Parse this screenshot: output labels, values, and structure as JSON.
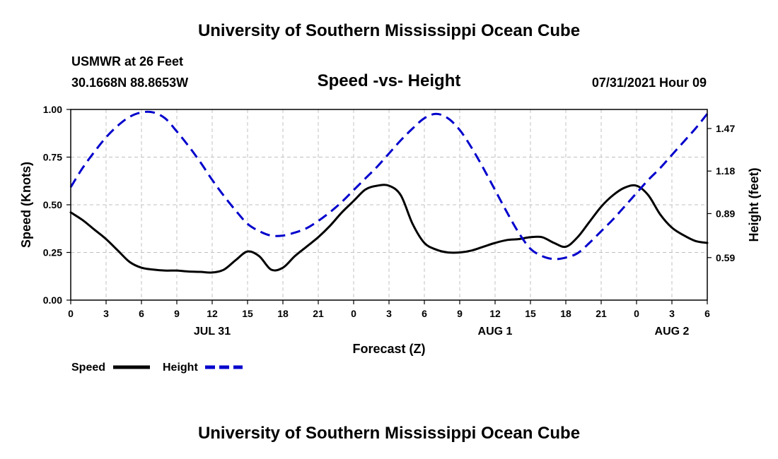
{
  "header": {
    "title": "University of Southern Mississippi Ocean Cube",
    "station": "USMWR at 26 Feet",
    "coordinates": "30.1668N  88.8653W",
    "chart_title": "Speed -vs- Height",
    "datetime": "07/31/2021 Hour 09"
  },
  "footer": {
    "title": "University of Southern Mississippi Ocean Cube"
  },
  "legend": {
    "speed_label": "Speed",
    "height_label": "Height"
  },
  "colors": {
    "speed": "#000000",
    "height": "#0000cc",
    "grid": "#c0c0c0"
  },
  "chart_data": {
    "type": "line",
    "title": "Speed -vs- Height",
    "xlabel": "Forecast (Z)",
    "ylabel": "Speed (Knots)",
    "y2label": "Height (feet)",
    "grid": true,
    "legend_position": "bottom-left",
    "x_range_hours": [
      0,
      54
    ],
    "x_tick_hours": [
      0,
      3,
      6,
      9,
      12,
      15,
      18,
      21,
      24,
      27,
      30,
      33,
      36,
      39,
      42,
      45,
      48,
      51,
      54
    ],
    "x_tick_labels": [
      "0",
      "3",
      "6",
      "9",
      "12",
      "15",
      "18",
      "21",
      "0",
      "3",
      "6",
      "9",
      "12",
      "15",
      "18",
      "21",
      "0",
      "3",
      "6"
    ],
    "date_labels": [
      {
        "hour": 12,
        "label": "JUL 31"
      },
      {
        "hour": 36,
        "label": "AUG 1"
      },
      {
        "hour": 51,
        "label": "AUG 2"
      }
    ],
    "ylim": [
      0,
      1.0
    ],
    "y_ticks": [
      0,
      0.25,
      0.5,
      0.75,
      1.0
    ],
    "y_tick_labels": [
      "0.00",
      "0.25",
      "0.50",
      "0.75",
      "1.00"
    ],
    "y2lim": [
      0.3,
      1.6
    ],
    "y2_ticks": [
      0.59,
      0.89,
      1.18,
      1.47
    ],
    "y2_tick_labels": [
      "0.59",
      "0.89",
      "1.18",
      "1.47"
    ],
    "series": [
      {
        "name": "Speed",
        "axis": "left",
        "style": "solid",
        "x": [
          0,
          1,
          2,
          3,
          4,
          5,
          6,
          7,
          8,
          9,
          10,
          11,
          12,
          13,
          14,
          15,
          16,
          17,
          18,
          19,
          20,
          21,
          22,
          23,
          24,
          25,
          26,
          27,
          28,
          29,
          30,
          31,
          32,
          33,
          34,
          35,
          36,
          37,
          38,
          39,
          40,
          41,
          42,
          43,
          44,
          45,
          46,
          47,
          48,
          49,
          50,
          51,
          52,
          53,
          54
        ],
        "values": [
          0.46,
          0.42,
          0.37,
          0.32,
          0.26,
          0.2,
          0.17,
          0.16,
          0.155,
          0.155,
          0.15,
          0.148,
          0.145,
          0.16,
          0.21,
          0.255,
          0.23,
          0.16,
          0.17,
          0.23,
          0.28,
          0.33,
          0.39,
          0.46,
          0.52,
          0.58,
          0.6,
          0.6,
          0.55,
          0.4,
          0.3,
          0.265,
          0.25,
          0.25,
          0.26,
          0.28,
          0.3,
          0.315,
          0.32,
          0.33,
          0.33,
          0.3,
          0.28,
          0.33,
          0.41,
          0.49,
          0.55,
          0.59,
          0.6,
          0.55,
          0.45,
          0.38,
          0.34,
          0.31,
          0.3
        ]
      },
      {
        "name": "Height",
        "axis": "right",
        "style": "dashed",
        "x": [
          0,
          1,
          2,
          3,
          4,
          5,
          6,
          7,
          8,
          9,
          10,
          11,
          12,
          13,
          14,
          15,
          16,
          17,
          18,
          19,
          20,
          21,
          22,
          23,
          24,
          25,
          26,
          27,
          28,
          29,
          30,
          31,
          32,
          33,
          34,
          35,
          36,
          37,
          38,
          39,
          40,
          41,
          42,
          43,
          44,
          45,
          46,
          47,
          48,
          49,
          50,
          51,
          52,
          53,
          54
        ],
        "values": [
          1.07,
          1.2,
          1.31,
          1.41,
          1.49,
          1.55,
          1.58,
          1.58,
          1.54,
          1.45,
          1.35,
          1.24,
          1.12,
          1.01,
          0.91,
          0.82,
          0.77,
          0.74,
          0.74,
          0.76,
          0.79,
          0.84,
          0.9,
          0.97,
          1.05,
          1.13,
          1.21,
          1.3,
          1.39,
          1.47,
          1.54,
          1.57,
          1.54,
          1.46,
          1.34,
          1.2,
          1.05,
          0.9,
          0.76,
          0.65,
          0.6,
          0.58,
          0.59,
          0.62,
          0.69,
          0.77,
          0.85,
          0.94,
          1.03,
          1.12,
          1.2,
          1.29,
          1.38,
          1.47,
          1.57
        ]
      }
    ]
  }
}
